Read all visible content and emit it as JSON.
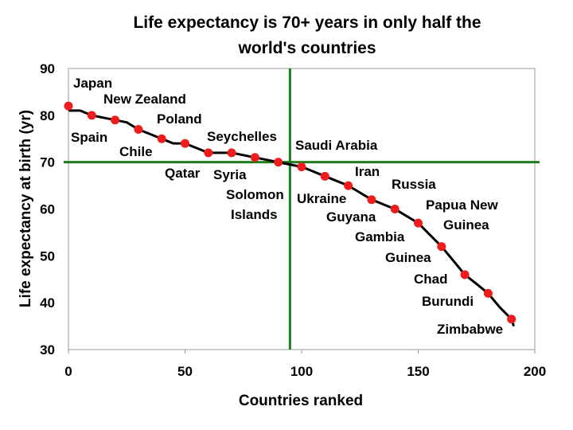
{
  "chart_data": {
    "type": "line",
    "title_lines": [
      "Life expectancy is 70+ years in only half the",
      "world's countries"
    ],
    "xlabel": "Countries ranked",
    "ylabel": "Life expectancy at birth (yr)",
    "xlim": [
      0,
      200
    ],
    "ylim": [
      30,
      90
    ],
    "xticks": [
      0,
      50,
      100,
      150,
      200
    ],
    "yticks": [
      30,
      40,
      50,
      60,
      70,
      80,
      90
    ],
    "reference_lines": {
      "x": 95,
      "y": 70,
      "color": "#1e7b1e"
    },
    "line_color": "#000000",
    "marker_color": "#ee1c1c",
    "markers": [
      {
        "x": 0,
        "y": 82
      },
      {
        "x": 10,
        "y": 80
      },
      {
        "x": 20,
        "y": 79
      },
      {
        "x": 30,
        "y": 77
      },
      {
        "x": 40,
        "y": 75
      },
      {
        "x": 50,
        "y": 74
      },
      {
        "x": 60,
        "y": 72
      },
      {
        "x": 70,
        "y": 72
      },
      {
        "x": 80,
        "y": 71
      },
      {
        "x": 90,
        "y": 70
      },
      {
        "x": 100,
        "y": 69
      },
      {
        "x": 110,
        "y": 67
      },
      {
        "x": 120,
        "y": 65
      },
      {
        "x": 130,
        "y": 62
      },
      {
        "x": 140,
        "y": 60
      },
      {
        "x": 150,
        "y": 57
      },
      {
        "x": 160,
        "y": 52
      },
      {
        "x": 170,
        "y": 46
      },
      {
        "x": 180,
        "y": 42
      },
      {
        "x": 190,
        "y": 36.5
      }
    ],
    "series": [
      {
        "name": "Life expectancy",
        "x": [
          0,
          0.5,
          5,
          10,
          15,
          20,
          25,
          30,
          35,
          40,
          45,
          50,
          55,
          60,
          65,
          70,
          75,
          80,
          85,
          90,
          95,
          100,
          105,
          110,
          115,
          120,
          125,
          130,
          135,
          140,
          145,
          150,
          155,
          160,
          165,
          170,
          175,
          180,
          185,
          190,
          191
        ],
        "y": [
          82,
          81,
          81,
          80,
          79.5,
          79,
          78.5,
          77,
          76,
          75,
          74,
          74,
          73,
          72,
          72,
          72,
          71.5,
          71,
          70.5,
          70,
          69.5,
          69,
          68,
          67,
          66,
          65,
          63.5,
          62,
          61,
          60,
          58.5,
          57,
          54.5,
          52,
          49,
          46,
          44,
          42,
          39,
          36.5,
          35
        ]
      }
    ],
    "annotations": [
      "Japan",
      "New Zealand",
      "Spain",
      "Poland",
      "Chile",
      "Seychelles",
      "Saudi Arabia",
      "Qatar",
      "Syria",
      "Iran",
      "Russia",
      "Solomon",
      "Islands",
      "Ukraine",
      "Guyana",
      "Papua New",
      "Guinea",
      "Gambia",
      "Guinea",
      "Chad",
      "Burundi",
      "Zimbabwe"
    ]
  }
}
